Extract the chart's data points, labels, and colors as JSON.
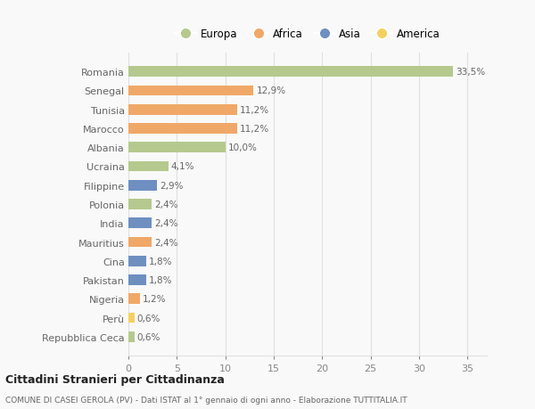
{
  "countries": [
    "Romania",
    "Senegal",
    "Tunisia",
    "Marocco",
    "Albania",
    "Ucraina",
    "Filippine",
    "Polonia",
    "India",
    "Mauritius",
    "Cina",
    "Pakistan",
    "Nigeria",
    "Perù",
    "Repubblica Ceca"
  ],
  "values": [
    33.5,
    12.9,
    11.2,
    11.2,
    10.0,
    4.1,
    2.9,
    2.4,
    2.4,
    2.4,
    1.8,
    1.8,
    1.2,
    0.6,
    0.6
  ],
  "labels": [
    "33,5%",
    "12,9%",
    "11,2%",
    "11,2%",
    "10,0%",
    "4,1%",
    "2,9%",
    "2,4%",
    "2,4%",
    "2,4%",
    "1,8%",
    "1,8%",
    "1,2%",
    "0,6%",
    "0,6%"
  ],
  "colors": [
    "#b5c98e",
    "#f0a868",
    "#f0a868",
    "#f0a868",
    "#b5c98e",
    "#b5c98e",
    "#6e8fc0",
    "#b5c98e",
    "#6e8fc0",
    "#f0a868",
    "#6e8fc0",
    "#6e8fc0",
    "#f0a868",
    "#f5d060",
    "#b5c98e"
  ],
  "legend_labels": [
    "Europa",
    "Africa",
    "Asia",
    "America"
  ],
  "legend_colors": [
    "#b5c98e",
    "#f0a868",
    "#6e8fc0",
    "#f5d060"
  ],
  "title": "Cittadini Stranieri per Cittadinanza",
  "subtitle": "COMUNE DI CASEI GEROLA (PV) - Dati ISTAT al 1° gennaio di ogni anno - Elaborazione TUTTITALIA.IT",
  "xlim": [
    0,
    37
  ],
  "background_color": "#f9f9f9",
  "grid_color": "#e0e0e0"
}
